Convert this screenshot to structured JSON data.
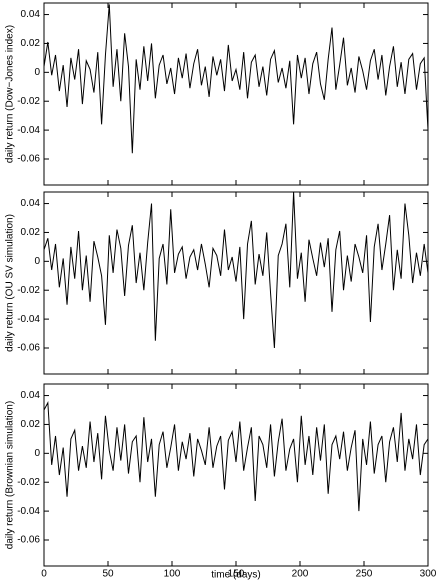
{
  "chart_data": [
    {
      "type": "line",
      "ylabel": "daily return (Dow−Jones index)",
      "xlim": [
        0,
        300
      ],
      "xticks": [
        0,
        50,
        100,
        150,
        200,
        250,
        300
      ],
      "ylim": [
        -0.078,
        0.048
      ],
      "yticks": [
        -0.06,
        -0.04,
        -0.02,
        0,
        0.02,
        0.04
      ],
      "color": "#000000",
      "x": [
        0,
        3,
        6,
        9,
        12,
        15,
        18,
        21,
        24,
        27,
        30,
        33,
        36,
        39,
        42,
        45,
        48,
        51,
        54,
        57,
        60,
        63,
        66,
        69,
        72,
        75,
        78,
        81,
        84,
        87,
        90,
        93,
        96,
        99,
        102,
        105,
        108,
        111,
        114,
        117,
        120,
        123,
        126,
        129,
        132,
        135,
        138,
        141,
        144,
        147,
        150,
        153,
        156,
        159,
        162,
        165,
        168,
        171,
        174,
        177,
        180,
        183,
        186,
        189,
        192,
        195,
        198,
        201,
        204,
        207,
        210,
        213,
        216,
        219,
        222,
        225,
        228,
        231,
        234,
        237,
        240,
        243,
        246,
        249,
        252,
        255,
        258,
        261,
        264,
        267,
        270,
        273,
        276,
        279,
        282,
        285,
        288,
        291,
        294,
        297,
        300
      ],
      "values": [
        0.004,
        0.021,
        -0.002,
        0.012,
        -0.013,
        0.005,
        -0.024,
        0.01,
        -0.005,
        0.016,
        -0.022,
        0.008,
        0.002,
        -0.014,
        0.014,
        -0.036,
        0.012,
        0.047,
        -0.01,
        0.016,
        -0.02,
        0.027,
        0.004,
        -0.056,
        0.009,
        -0.012,
        0.018,
        -0.006,
        0.02,
        -0.018,
        0.005,
        0.012,
        -0.008,
        0.003,
        -0.015,
        0.01,
        -0.004,
        0.013,
        -0.011,
        0.006,
        0.016,
        -0.009,
        0.004,
        -0.017,
        0.011,
        -0.002,
        0.009,
        -0.013,
        0.019,
        -0.006,
        0.002,
        -0.012,
        0.014,
        -0.018,
        0.007,
        0.012,
        -0.01,
        0.004,
        -0.016,
        0.009,
        0.015,
        -0.007,
        0.003,
        -0.011,
        0.008,
        -0.036,
        0.012,
        -0.004,
        0.01,
        -0.015,
        0.006,
        0.014,
        -0.008,
        -0.019,
        0.009,
        0.031,
        -0.012,
        0.005,
        0.024,
        -0.009,
        0.003,
        -0.014,
        0.011,
        0.001,
        -0.012,
        0.008,
        0.016,
        -0.005,
        0.012,
        -0.016,
        0.004,
        0.018,
        -0.01,
        0.007,
        -0.015,
        0.009,
        0.013,
        -0.012,
        0.006,
        0.01,
        -0.04
      ]
    },
    {
      "type": "line",
      "ylabel": "daily return (OU SV simulation)",
      "xlim": [
        0,
        300
      ],
      "xticks": [
        0,
        50,
        100,
        150,
        200,
        250,
        300
      ],
      "ylim": [
        -0.078,
        0.048
      ],
      "yticks": [
        -0.06,
        -0.04,
        -0.02,
        0,
        0.02,
        0.04
      ],
      "color": "#000000",
      "x": [
        0,
        3,
        6,
        9,
        12,
        15,
        18,
        21,
        24,
        27,
        30,
        33,
        36,
        39,
        42,
        45,
        48,
        51,
        54,
        57,
        60,
        63,
        66,
        69,
        72,
        75,
        78,
        81,
        84,
        87,
        90,
        93,
        96,
        99,
        102,
        105,
        108,
        111,
        114,
        117,
        120,
        123,
        126,
        129,
        132,
        135,
        138,
        141,
        144,
        147,
        150,
        153,
        156,
        159,
        162,
        165,
        168,
        171,
        174,
        177,
        180,
        183,
        186,
        189,
        192,
        195,
        198,
        201,
        204,
        207,
        210,
        213,
        216,
        219,
        222,
        225,
        228,
        231,
        234,
        237,
        240,
        243,
        246,
        249,
        252,
        255,
        258,
        261,
        264,
        267,
        270,
        273,
        276,
        279,
        282,
        285,
        288,
        291,
        294,
        297,
        300
      ],
      "values": [
        0.008,
        0.016,
        -0.006,
        0.012,
        -0.018,
        0.002,
        -0.03,
        0.01,
        -0.012,
        0.021,
        -0.02,
        0.004,
        -0.028,
        0.014,
        0.003,
        -0.01,
        -0.044,
        0.018,
        -0.008,
        0.022,
        0.009,
        -0.024,
        0.011,
        0.025,
        -0.015,
        0.006,
        -0.02,
        0.013,
        0.04,
        -0.055,
        0.002,
        0.012,
        -0.016,
        0.036,
        -0.008,
        0.005,
        0.01,
        -0.012,
        0.003,
        0.008,
        -0.006,
        0.012,
        -0.002,
        -0.018,
        0.009,
        0.004,
        -0.01,
        0.022,
        -0.006,
        0.003,
        -0.014,
        0.01,
        -0.04,
        0.012,
        0.028,
        -0.016,
        0.005,
        -0.01,
        0.02,
        -0.022,
        -0.06,
        0.004,
        0.012,
        0.026,
        -0.018,
        0.048,
        -0.012,
        0.006,
        -0.028,
        0.015,
        0.002,
        -0.01,
        0.013,
        -0.004,
        0.016,
        -0.035,
        0.008,
        0.021,
        -0.02,
        0.004,
        -0.014,
        0.012,
        0.003,
        -0.008,
        0.018,
        -0.042,
        0.01,
        0.026,
        -0.006,
        0.012,
        0.032,
        -0.02,
        0.008,
        -0.012,
        0.04,
        0.018,
        -0.015,
        0.006,
        -0.01,
        0.012,
        -0.008
      ]
    },
    {
      "type": "line",
      "ylabel": "daily return (Brownian simulation)",
      "xlabel": "time (days)",
      "xlim": [
        0,
        300
      ],
      "xticks": [
        0,
        50,
        100,
        150,
        200,
        250,
        300
      ],
      "ylim": [
        -0.078,
        0.048
      ],
      "yticks": [
        -0.06,
        -0.04,
        -0.02,
        0,
        0.02,
        0.04
      ],
      "color": "#000000",
      "x": [
        0,
        3,
        6,
        9,
        12,
        15,
        18,
        21,
        24,
        27,
        30,
        33,
        36,
        39,
        42,
        45,
        48,
        51,
        54,
        57,
        60,
        63,
        66,
        69,
        72,
        75,
        78,
        81,
        84,
        87,
        90,
        93,
        96,
        99,
        102,
        105,
        108,
        111,
        114,
        117,
        120,
        123,
        126,
        129,
        132,
        135,
        138,
        141,
        144,
        147,
        150,
        153,
        156,
        159,
        162,
        165,
        168,
        171,
        174,
        177,
        180,
        183,
        186,
        189,
        192,
        195,
        198,
        201,
        204,
        207,
        210,
        213,
        216,
        219,
        222,
        225,
        228,
        231,
        234,
        237,
        240,
        243,
        246,
        249,
        252,
        255,
        258,
        261,
        264,
        267,
        270,
        273,
        276,
        279,
        282,
        285,
        288,
        291,
        294,
        297,
        300
      ],
      "values": [
        0.03,
        0.035,
        -0.008,
        0.012,
        -0.015,
        0.004,
        -0.03,
        0.01,
        0.016,
        -0.012,
        0.005,
        -0.01,
        0.022,
        -0.006,
        0.014,
        -0.018,
        0.026,
        0.002,
        -0.012,
        0.018,
        -0.005,
        0.02,
        -0.014,
        0.008,
        0.012,
        -0.02,
        0.025,
        -0.006,
        0.01,
        -0.03,
        0.006,
        0.015,
        -0.01,
        0.004,
        0.02,
        -0.012,
        0.008,
        -0.004,
        0.014,
        -0.016,
        0.01,
        0.002,
        -0.008,
        0.018,
        -0.01,
        0.005,
        0.012,
        -0.025,
        0.009,
        0.015,
        -0.006,
        0.022,
        -0.012,
        0.004,
        0.018,
        -0.033,
        0.012,
        0.006,
        -0.01,
        0.02,
        -0.016,
        0.008,
        0.024,
        -0.012,
        0.003,
        0.01,
        -0.02,
        0.026,
        -0.008,
        0.012,
        -0.015,
        0.018,
        -0.005,
        0.02,
        -0.028,
        0.006,
        0.012,
        -0.004,
        0.015,
        -0.012,
        0.004,
        0.016,
        -0.04,
        0.01,
        -0.008,
        0.022,
        -0.014,
        0.006,
        0.012,
        -0.02,
        0.008,
        0.018,
        -0.006,
        0.028,
        -0.012,
        0.01,
        -0.004,
        0.02,
        -0.015,
        0.006,
        0.01
      ]
    }
  ]
}
